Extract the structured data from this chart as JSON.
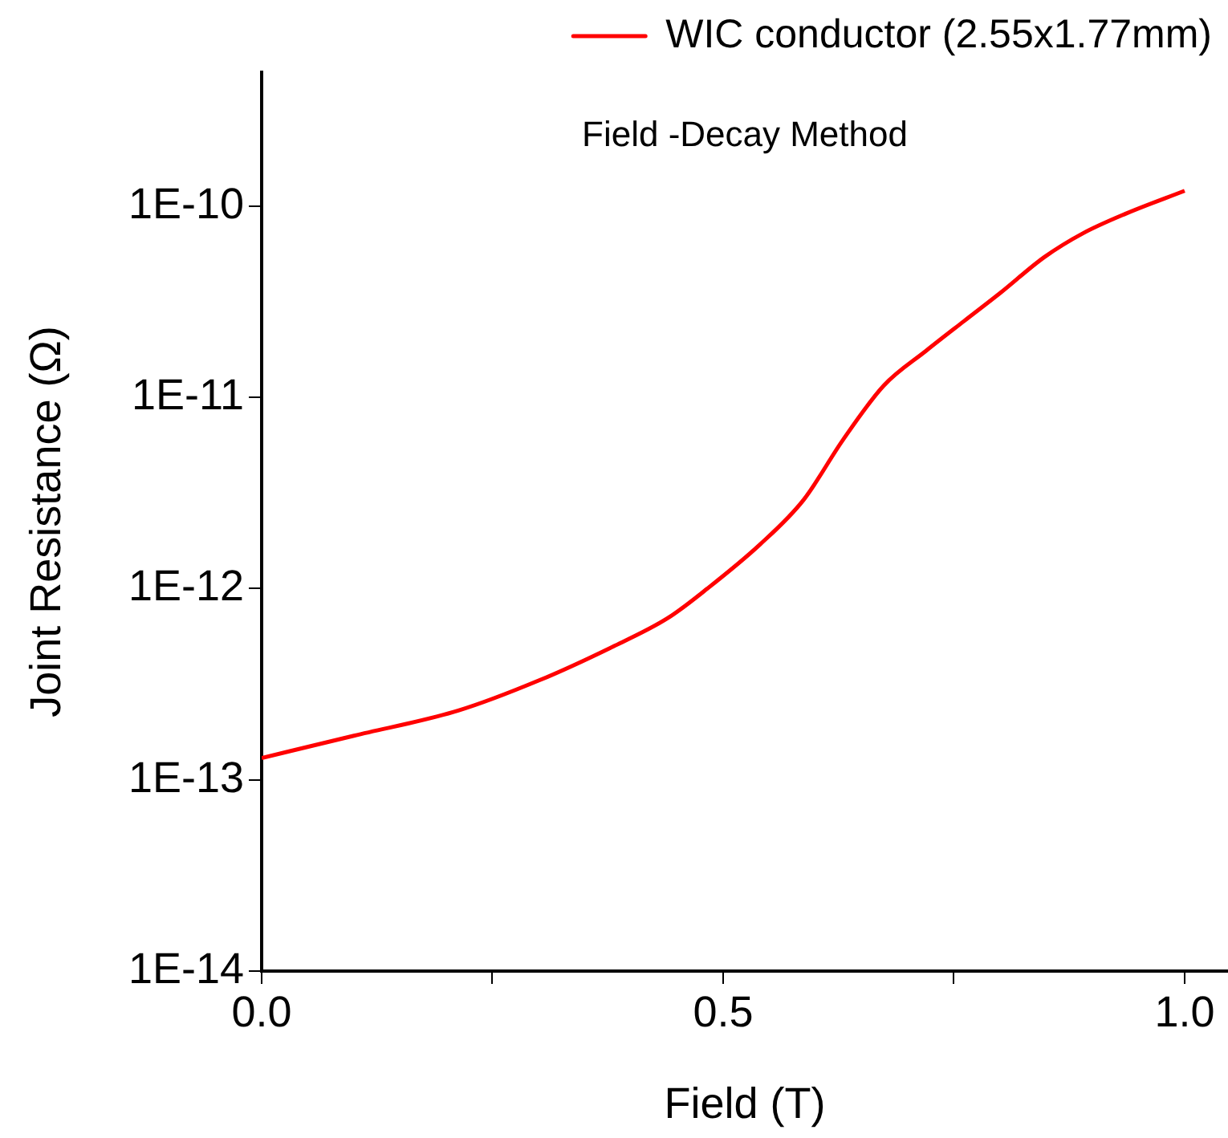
{
  "chart_data": {
    "type": "line",
    "xlabel": "Field (T)",
    "ylabel": "Joint Resistance (Ω)",
    "annotations": [
      "Field -Decay Method"
    ],
    "log": "y",
    "legend": "top right",
    "marker": "none",
    "line_style": "solid",
    "grid": false,
    "xlim": [
      0,
      1.047
    ],
    "xticks": [
      {
        "value": 0,
        "label": "0.0"
      },
      {
        "value": 0.25,
        "label": null
      },
      {
        "value": 0.5,
        "label": "0.5"
      },
      {
        "value": 0.75,
        "label": null
      },
      {
        "value": 1,
        "label": "1.0"
      }
    ],
    "ylim": [
      1e-14,
      5e-10
    ],
    "yticks": [
      {
        "value": 1e-14,
        "label": "1E-14"
      },
      {
        "value": 1e-13,
        "label": "1E-13"
      },
      {
        "value": 1e-12,
        "label": "1E-12"
      },
      {
        "value": 1e-11,
        "label": "1E-11"
      },
      {
        "value": 1e-10,
        "label": "1E-10"
      }
    ],
    "series": [
      {
        "name": "WIC conductor (2.55x1.77mm)",
        "color": "#ff0000",
        "x": [
          0,
          0.1,
          0.213,
          0.3,
          0.378,
          0.44,
          0.483,
          0.54,
          0.587,
          0.63,
          0.674,
          0.72,
          0.761,
          0.8,
          0.848,
          0.89,
          0.936,
          1.0
        ],
        "values": [
          1.3e-13,
          1.7e-13,
          2.3e-13,
          3.3e-13,
          4.9e-13,
          7e-13,
          1e-12,
          1.7e-12,
          2.9e-12,
          6e-12,
          1.15e-11,
          1.75e-11,
          2.5e-11,
          3.5e-11,
          5.4e-11,
          7.2e-11,
          9.1e-11,
          1.2e-10
        ]
      }
    ]
  }
}
